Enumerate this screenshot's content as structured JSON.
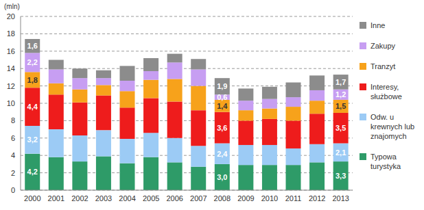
{
  "chart_data": {
    "type": "bar",
    "stacked": true,
    "grid": true,
    "legend": "right",
    "data_labels": true,
    "ylabel": "(mln)",
    "categories": [
      "2000",
      "2001",
      "2002",
      "2003",
      "2004",
      "2005",
      "2006",
      "2007",
      "2008",
      "2009",
      "2010",
      "2011",
      "2012",
      "2013"
    ],
    "ylim": [
      0,
      20
    ],
    "yticks": [
      0,
      2,
      4,
      6,
      8,
      10,
      12,
      14,
      16,
      18,
      20
    ],
    "series": [
      {
        "name": "Typowa turystyka",
        "color": "#2e9b68",
        "values": [
          4.2,
          3.8,
          3.3,
          3.9,
          3.1,
          3.8,
          3.2,
          2.7,
          3.0,
          2.9,
          2.9,
          2.9,
          3.2,
          3.3
        ],
        "value_labels": [
          "4,2",
          null,
          null,
          null,
          null,
          null,
          null,
          null,
          "3,0",
          null,
          null,
          null,
          null,
          "3,3"
        ]
      },
      {
        "name": "Odw. u krewnych lub znajomych",
        "color": "#9ccbf5",
        "values": [
          3.2,
          3.2,
          3.0,
          3.0,
          2.8,
          2.8,
          2.8,
          2.4,
          2.4,
          2.3,
          2.3,
          1.9,
          2.1,
          2.1
        ],
        "value_labels": [
          "3,2",
          null,
          null,
          null,
          null,
          null,
          null,
          null,
          "2,4",
          null,
          null,
          null,
          null,
          "2,1"
        ]
      },
      {
        "name": "Interesy, służbowe",
        "color": "#ee1c1c",
        "values": [
          4.4,
          4.0,
          3.8,
          4.0,
          3.6,
          4.0,
          4.2,
          4.1,
          3.6,
          2.8,
          3.0,
          3.2,
          3.5,
          3.5
        ],
        "value_labels": [
          "4,4",
          null,
          null,
          null,
          null,
          null,
          null,
          null,
          "3,6",
          null,
          null,
          null,
          null,
          "3,5"
        ]
      },
      {
        "name": "Tranzyt",
        "color": "#f7a21b",
        "values": [
          1.8,
          1.3,
          1.5,
          1.2,
          1.9,
          2.1,
          2.6,
          2.8,
          1.4,
          1.2,
          1.2,
          1.6,
          1.5,
          1.5
        ],
        "value_labels": [
          "1,8",
          null,
          null,
          null,
          null,
          null,
          null,
          null,
          "1,4",
          null,
          null,
          null,
          null,
          "1,5"
        ]
      },
      {
        "name": "Zakupy",
        "color": "#c79ef2",
        "values": [
          2.2,
          1.6,
          1.3,
          0.8,
          1.2,
          1.0,
          1.9,
          1.9,
          0.6,
          1.1,
          1.1,
          1.1,
          1.2,
          1.2
        ],
        "value_labels": [
          "2,2",
          null,
          null,
          null,
          null,
          null,
          null,
          null,
          "0,6",
          null,
          null,
          null,
          null,
          "1,2"
        ]
      },
      {
        "name": "Inne",
        "color": "#8c8c8c",
        "values": [
          1.6,
          1.1,
          1.1,
          0.9,
          1.7,
          1.5,
          1.0,
          1.2,
          1.9,
          1.4,
          1.4,
          1.7,
          1.7,
          1.7
        ],
        "value_labels": [
          "1,6",
          null,
          null,
          null,
          null,
          null,
          null,
          null,
          "1,9",
          null,
          null,
          null,
          null,
          "1,7"
        ]
      }
    ]
  }
}
